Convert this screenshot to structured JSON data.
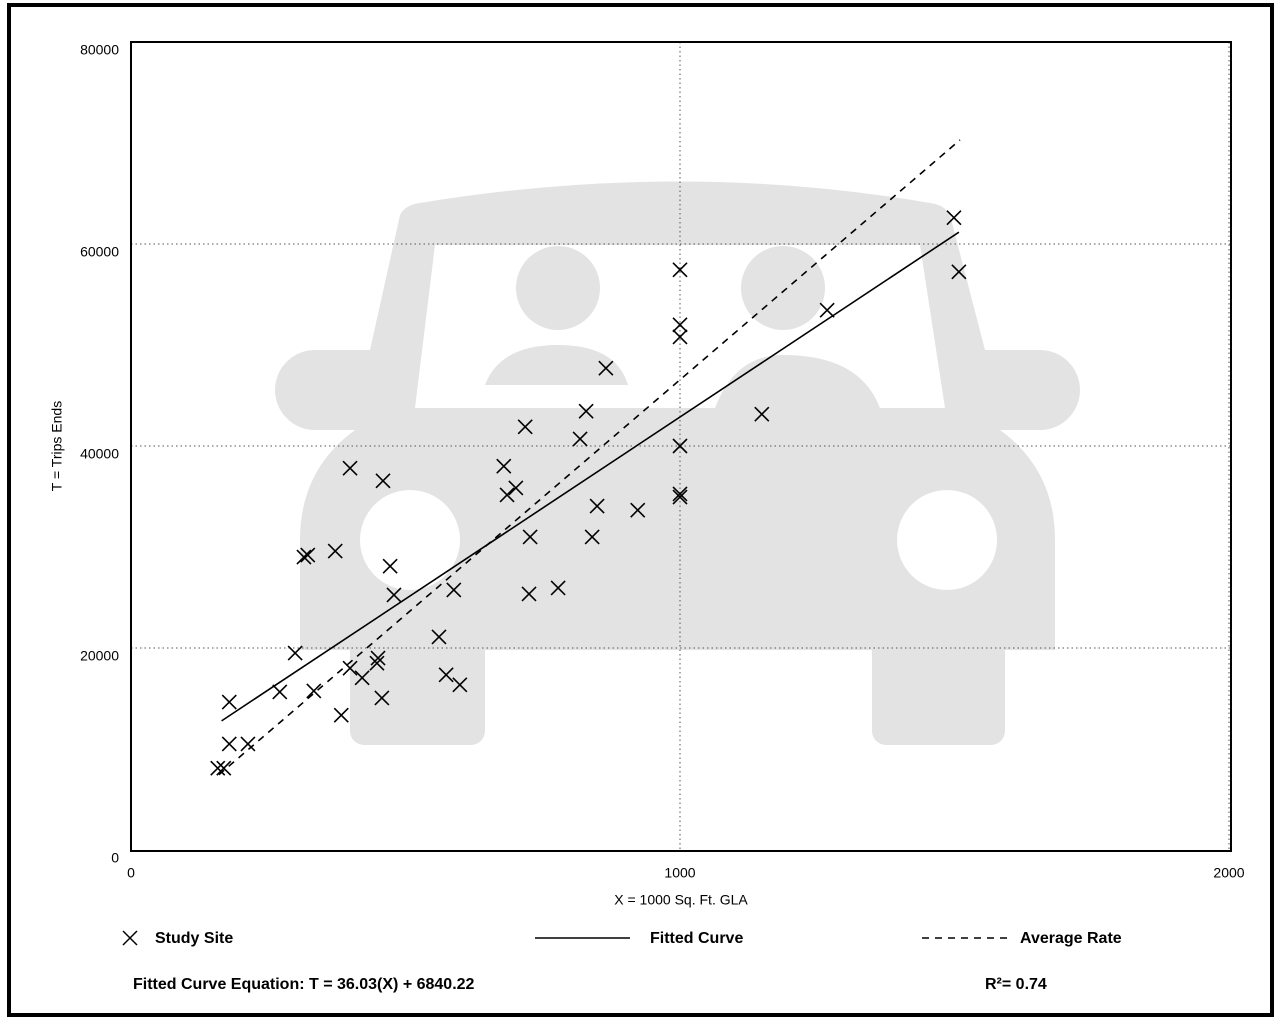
{
  "chart_data": {
    "type": "scatter",
    "xlabel": "X = 1000 Sq. Ft. GLA",
    "ylabel": "T = Trips Ends",
    "xlim": [
      0,
      2000
    ],
    "ylim": [
      0,
      80000
    ],
    "xticks": [
      0,
      1000,
      2000
    ],
    "yticks": [
      0,
      20000,
      40000,
      60000,
      80000
    ],
    "grid": true,
    "series": [
      {
        "name": "Study Site",
        "color": "#000000",
        "x": [
          158,
          169,
          179,
          179,
          213,
          271,
          299,
          315,
          322,
          333,
          372,
          383,
          399,
          399,
          421,
          448,
          450,
          457,
          459,
          472,
          479,
          561,
          574,
          588,
          599,
          679,
          685,
          701,
          718,
          727,
          725,
          778,
          818,
          829,
          840,
          849,
          865,
          923,
          1000,
          1000,
          1000,
          1000,
          1000,
          1000,
          1149,
          1268,
          1499,
          1508
        ],
        "values": [
          8100,
          8100,
          14650,
          10500,
          10500,
          15650,
          19500,
          29000,
          29200,
          15750,
          29600,
          13350,
          37800,
          18000,
          17050,
          18500,
          19000,
          15050,
          36550,
          28100,
          25250,
          21100,
          17350,
          25750,
          16350,
          38000,
          35150,
          35850,
          41900,
          31000,
          25350,
          25950,
          40700,
          43450,
          31000,
          34050,
          47700,
          33650,
          57450,
          52000,
          50800,
          40000,
          35250,
          34950,
          43150,
          53450,
          62600,
          57250
        ]
      },
      {
        "name": "Fitted Curve",
        "color": "#000000",
        "x": [
          165,
          1508
        ],
        "values": [
          12785,
          61173
        ]
      },
      {
        "name": "Average Rate",
        "color": "#000000",
        "x": [
          160,
          1510
        ],
        "values": [
          7450,
          70300
        ]
      }
    ],
    "equation": "Fitted Curve Equation: T = 36.03(X) + 6840.22",
    "r_squared": "R²= 0.74"
  }
}
